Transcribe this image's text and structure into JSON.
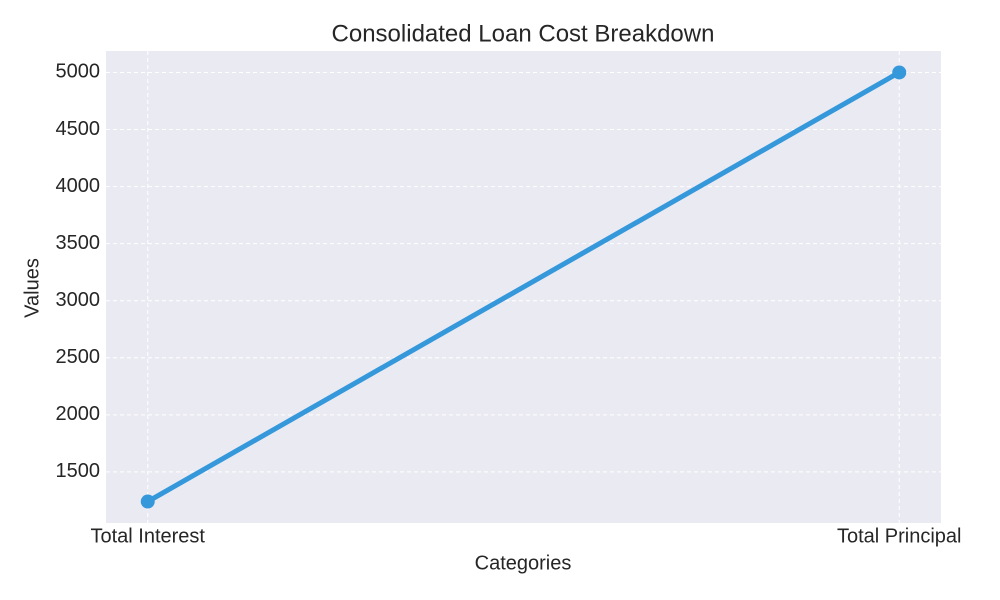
{
  "chart_data": {
    "type": "line",
    "title": "Consolidated Loan Cost Breakdown",
    "x_label": "Categories",
    "y_label": "Values",
    "categories": [
      "Total Interest",
      "Total Principal"
    ],
    "series": [
      {
        "name": "Values",
        "color": "#3498db",
        "values": [
          1240,
          5000
        ]
      }
    ],
    "ylim": [
      1052,
      5188
    ],
    "yticks": [
      1500,
      2000,
      2500,
      3000,
      3500,
      4000,
      4500,
      5000
    ],
    "grid": true
  }
}
